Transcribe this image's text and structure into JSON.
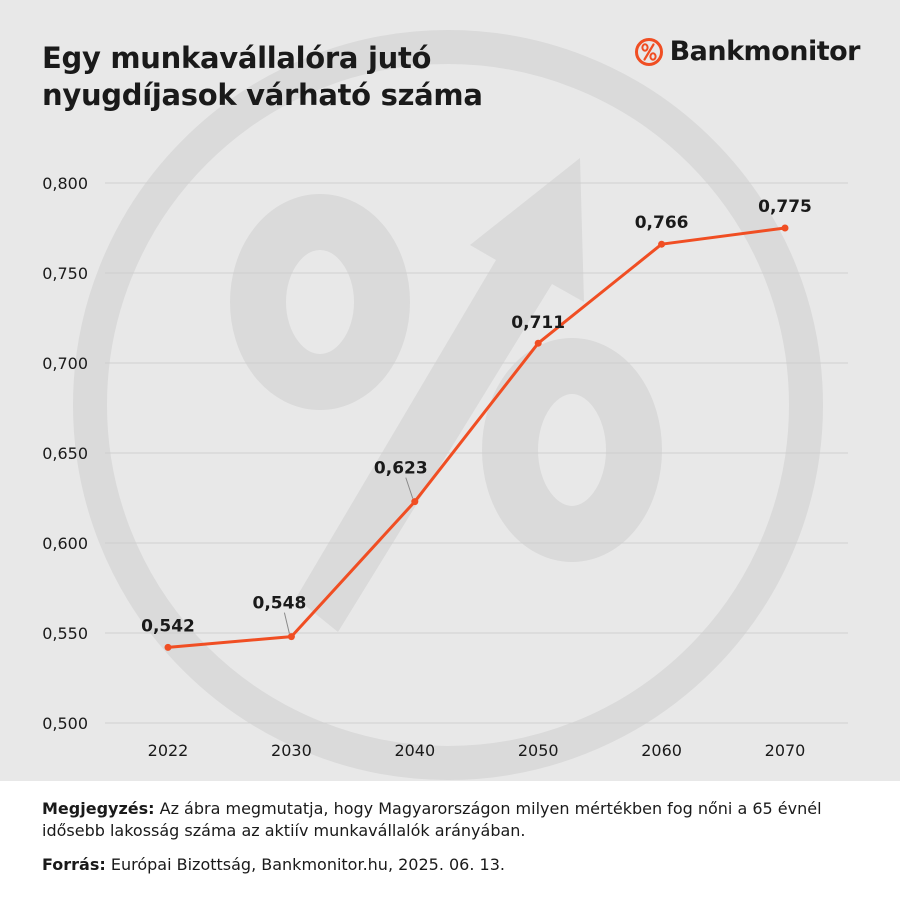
{
  "header": {
    "title_line1": "Egy munkavállalóra jutó",
    "title_line2": "nyugdíjasok várható száma",
    "logo_text": "Bankmonitor",
    "logo_icon": "percent-circle-icon"
  },
  "colors": {
    "accent": "#f04e23",
    "panel_bg": "#e8e8e8",
    "watermark": "#dadada",
    "text": "#1a1a1a"
  },
  "chart_data": {
    "type": "line",
    "title": "Egy munkavállalóra jutó nyugdíjasok várható száma",
    "categories": [
      "2022",
      "2030",
      "2040",
      "2050",
      "2060",
      "2070"
    ],
    "values": [
      0.542,
      0.548,
      0.623,
      0.711,
      0.766,
      0.775
    ],
    "data_labels": [
      "0,542",
      "0,548",
      "0,623",
      "0,711",
      "0,766",
      "0,775"
    ],
    "ylim": [
      0.5,
      0.8
    ],
    "yticks": [
      0.5,
      0.55,
      0.6,
      0.65,
      0.7,
      0.75,
      0.8
    ],
    "ytick_labels": [
      "0,500",
      "0,550",
      "0,600",
      "0,650",
      "0,700",
      "0,750",
      "0,800"
    ],
    "grid": true,
    "legend": false,
    "xlabel": "",
    "ylabel": ""
  },
  "footer": {
    "note_label": "Megjegyzés:",
    "note_text": " Az ábra megmutatja, hogy Magyarországon milyen mértékben fog nőni a 65 évnél idősebb lakosság száma az aktiív munkavállalók arányában.",
    "source_label": "Forrás:",
    "source_text": " Európai Bizottság, Bankmonitor.hu, 2025. 06. 13."
  }
}
